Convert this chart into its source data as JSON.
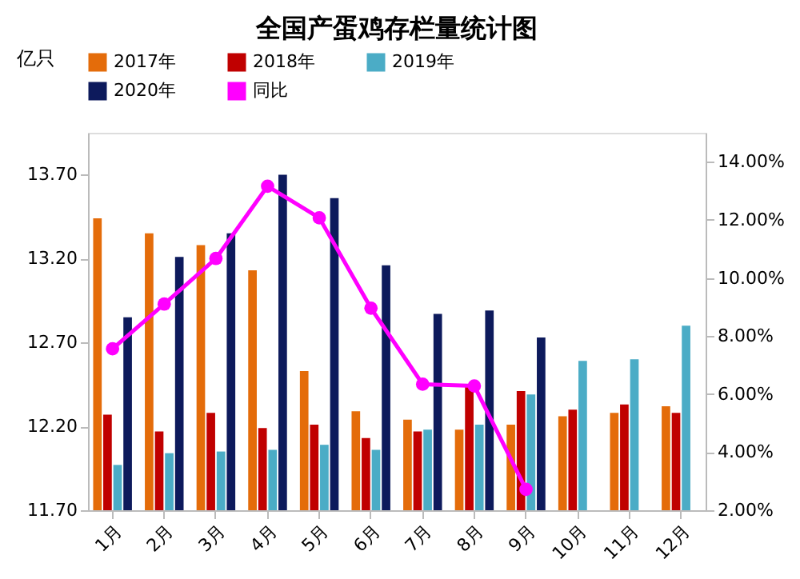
{
  "chart_data": {
    "type": "bar",
    "title": "全国产蛋鸡存栏量统计图",
    "ylabel": "亿只",
    "categories": [
      "1月",
      "2月",
      "3月",
      "4月",
      "5月",
      "6月",
      "7月",
      "8月",
      "9月",
      "10月",
      "11月",
      "12月"
    ],
    "series": [
      {
        "name": "2017年",
        "color": "#e46c0a",
        "values": [
          13.44,
          13.35,
          13.28,
          13.13,
          12.53,
          12.29,
          12.24,
          12.18,
          12.21,
          12.26,
          12.28,
          12.32
        ]
      },
      {
        "name": "2018年",
        "color": "#c00000",
        "values": [
          12.27,
          12.17,
          12.28,
          12.19,
          12.21,
          12.13,
          12.17,
          12.44,
          12.41,
          12.3,
          12.33,
          12.28
        ]
      },
      {
        "name": "2019年",
        "color": "#4bacc6",
        "values": [
          11.97,
          12.04,
          12.05,
          12.06,
          12.09,
          12.06,
          12.18,
          12.21,
          12.39,
          12.59,
          12.6,
          12.8
        ]
      },
      {
        "name": "2020年",
        "color": "#0d1a5c",
        "values": [
          12.85,
          13.21,
          13.35,
          13.7,
          13.56,
          13.16,
          12.87,
          12.89,
          12.73,
          null,
          null,
          null
        ]
      },
      {
        "name": "同比",
        "color": "#ff00ff",
        "type": "line",
        "axis": "y2",
        "marker": "circle",
        "values": [
          7.56,
          9.1,
          10.67,
          13.16,
          12.07,
          8.96,
          6.34,
          6.28,
          2.72,
          null,
          null,
          null
        ]
      }
    ],
    "ylim": [
      11.7,
      13.95
    ],
    "yticks": [
      {
        "value": 11.7,
        "label": "11.70"
      },
      {
        "value": 12.2,
        "label": "12.20"
      },
      {
        "value": 12.7,
        "label": "12.70"
      },
      {
        "value": 13.2,
        "label": "13.20"
      },
      {
        "value": 13.7,
        "label": "13.70"
      }
    ],
    "y2lim": [
      2,
      15
    ],
    "y2ticks": [
      {
        "value": 2,
        "label": "2.00%"
      },
      {
        "value": 4,
        "label": "4.00%"
      },
      {
        "value": 6,
        "label": "6.00%"
      },
      {
        "value": 8,
        "label": "8.00%"
      },
      {
        "value": 10,
        "label": "10.00%"
      },
      {
        "value": 12,
        "label": "12.00%"
      },
      {
        "value": 14,
        "label": "14.00%"
      }
    ],
    "legend": "top",
    "grid": false
  }
}
